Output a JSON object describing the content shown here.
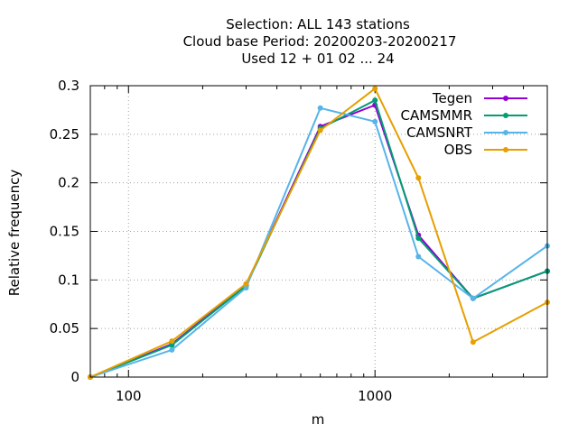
{
  "chart_data": {
    "type": "line",
    "title_lines": [
      "Selection: ALL    143 stations",
      "Cloud base  Period: 20200203-20200217",
      "Used  12 + 01 02 ... 24"
    ],
    "xlabel": "m",
    "ylabel": "Relative frequency",
    "x_scale": "log",
    "xlim": [
      70,
      5000
    ],
    "ylim": [
      0,
      0.3
    ],
    "x_ticks": [
      {
        "value": 100,
        "label": "100"
      },
      {
        "value": 1000,
        "label": "1000"
      }
    ],
    "y_ticks": [
      {
        "value": 0,
        "label": "0"
      },
      {
        "value": 0.05,
        "label": "0.05"
      },
      {
        "value": 0.1,
        "label": "0.1"
      },
      {
        "value": 0.15,
        "label": "0.15"
      },
      {
        "value": 0.2,
        "label": "0.2"
      },
      {
        "value": 0.25,
        "label": "0.25"
      },
      {
        "value": 0.3,
        "label": "0.3"
      }
    ],
    "grid": true,
    "legend_position": "top-right",
    "x": [
      70,
      150,
      300,
      600,
      1000,
      1500,
      2500,
      5000
    ],
    "series": [
      {
        "name": "Tegen",
        "color": "#9400d3",
        "values": [
          0,
          0.034,
          0.095,
          0.258,
          0.28,
          0.146,
          0.081,
          0.109
        ]
      },
      {
        "name": "CAMSMMR",
        "color": "#009e73",
        "values": [
          0,
          0.033,
          0.094,
          0.256,
          0.285,
          0.143,
          0.081,
          0.109
        ]
      },
      {
        "name": "CAMSNRT",
        "color": "#56b4e9",
        "values": [
          0,
          0.028,
          0.092,
          0.277,
          0.263,
          0.124,
          0.081,
          0.135
        ]
      },
      {
        "name": "OBS",
        "color": "#e69f00",
        "values": [
          0,
          0.037,
          0.096,
          0.254,
          0.297,
          0.205,
          0.036,
          0.077
        ]
      }
    ]
  }
}
